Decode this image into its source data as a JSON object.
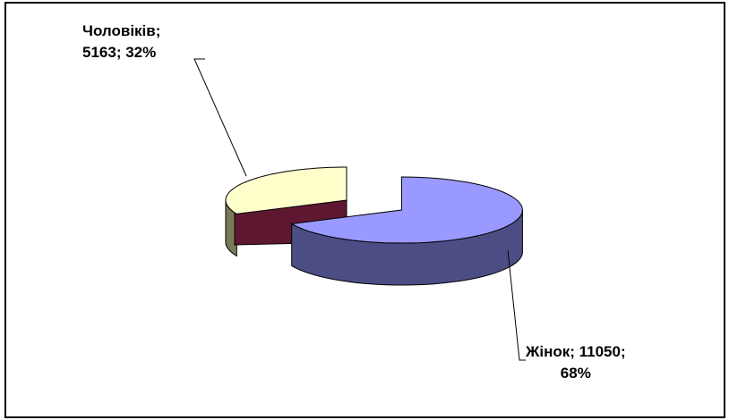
{
  "chart_data": {
    "type": "pie",
    "title": "",
    "three_d": true,
    "legend": "none",
    "slices": [
      {
        "label": "Жінок",
        "value": 11050,
        "percent": 68,
        "label_line1": "Жінок; 11050;",
        "label_line2": "68%",
        "top_color": "#9999ff",
        "side_color": "#4d4d86",
        "exploded": true
      },
      {
        "label": "Чоловіків",
        "value": 5163,
        "percent": 32,
        "label_line1": "Чоловіків;",
        "label_line2": "5163; 32%",
        "top_color": "#ffffcc",
        "side_color": "#7a7a58",
        "inner_side_color": "#5e1731",
        "exploded": false
      }
    ]
  }
}
